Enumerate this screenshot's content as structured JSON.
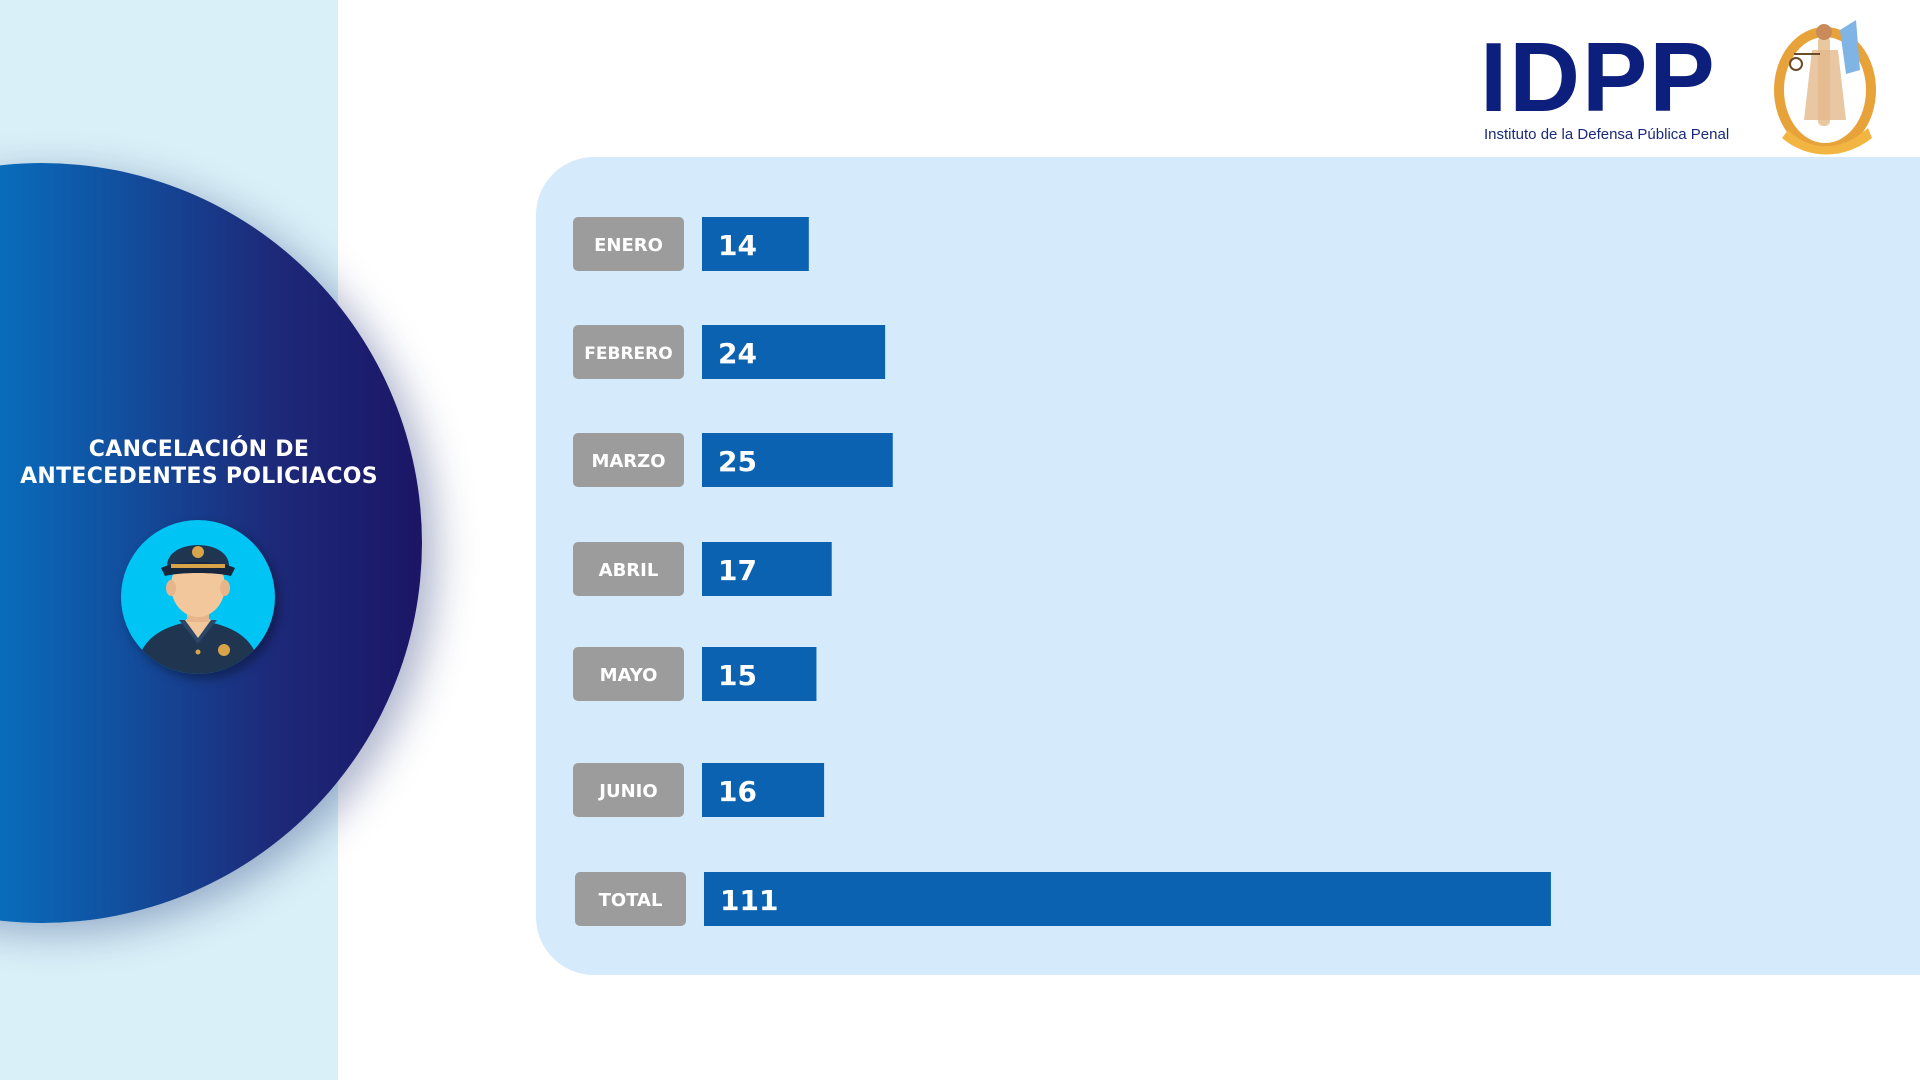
{
  "header": {
    "logo_text": "IDPP",
    "logo_subtitle": "Instituto de la Defensa Pública Penal"
  },
  "sidebar": {
    "title_line1": "CANCELACIÓN DE",
    "title_line2": "ANTECEDENTES POLICIACOS"
  },
  "colors": {
    "bar": "#0b62b0",
    "label_box": "#9c9c9c",
    "panel": "#d5eafa",
    "text_light": "#ffffff"
  },
  "chart_data": {
    "type": "bar",
    "orientation": "horizontal",
    "categories": [
      "ENERO",
      "FEBRERO",
      "MARZO",
      "ABRIL",
      "MAYO",
      "JUNIO",
      "TOTAL"
    ],
    "values": [
      14,
      24,
      25,
      17,
      15,
      16,
      111
    ],
    "title": "",
    "xlabel": "",
    "ylabel": "",
    "grid": false,
    "legend": "none"
  }
}
